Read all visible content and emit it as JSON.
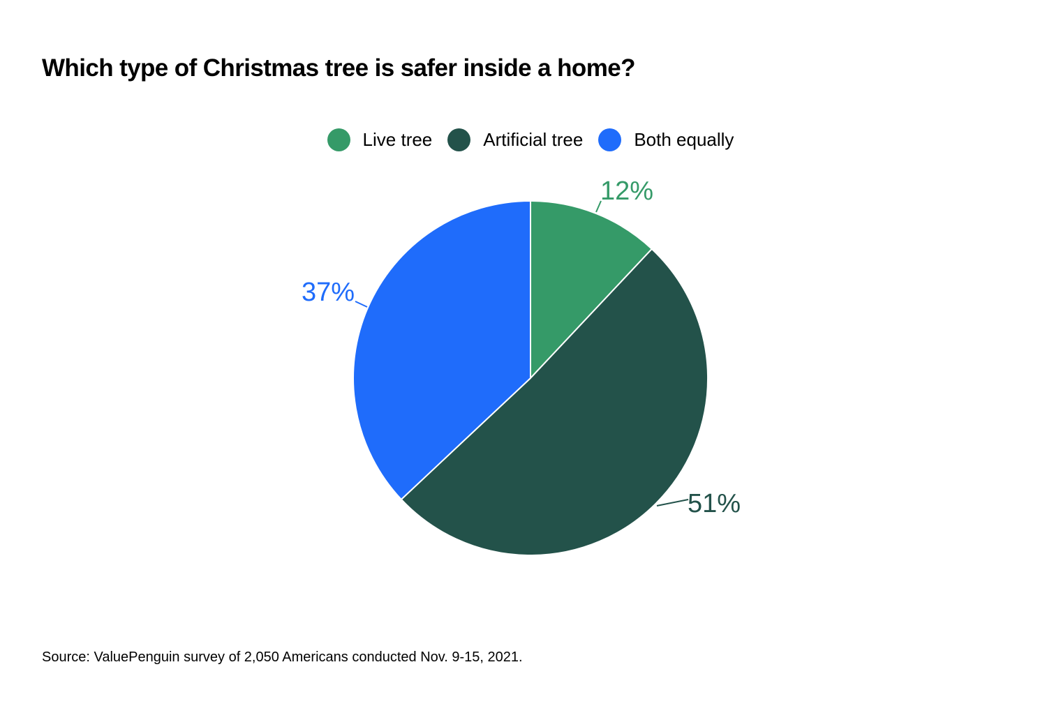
{
  "chart_data": {
    "type": "pie",
    "title": "Which type of Christmas tree is safer inside a home?",
    "categories": [
      "Live tree",
      "Artificial tree",
      "Both equally"
    ],
    "values": [
      12,
      51,
      37
    ],
    "data_labels": [
      "12%",
      "51%",
      "37%"
    ],
    "colors": [
      "#359A68",
      "#23524A",
      "#1F6CFB"
    ],
    "legend_position": "top-center",
    "start_angle": "12 o'clock",
    "direction": "clockwise",
    "source": "Source: ValuePenguin survey of 2,050 Americans conducted Nov. 9-15, 2021."
  }
}
